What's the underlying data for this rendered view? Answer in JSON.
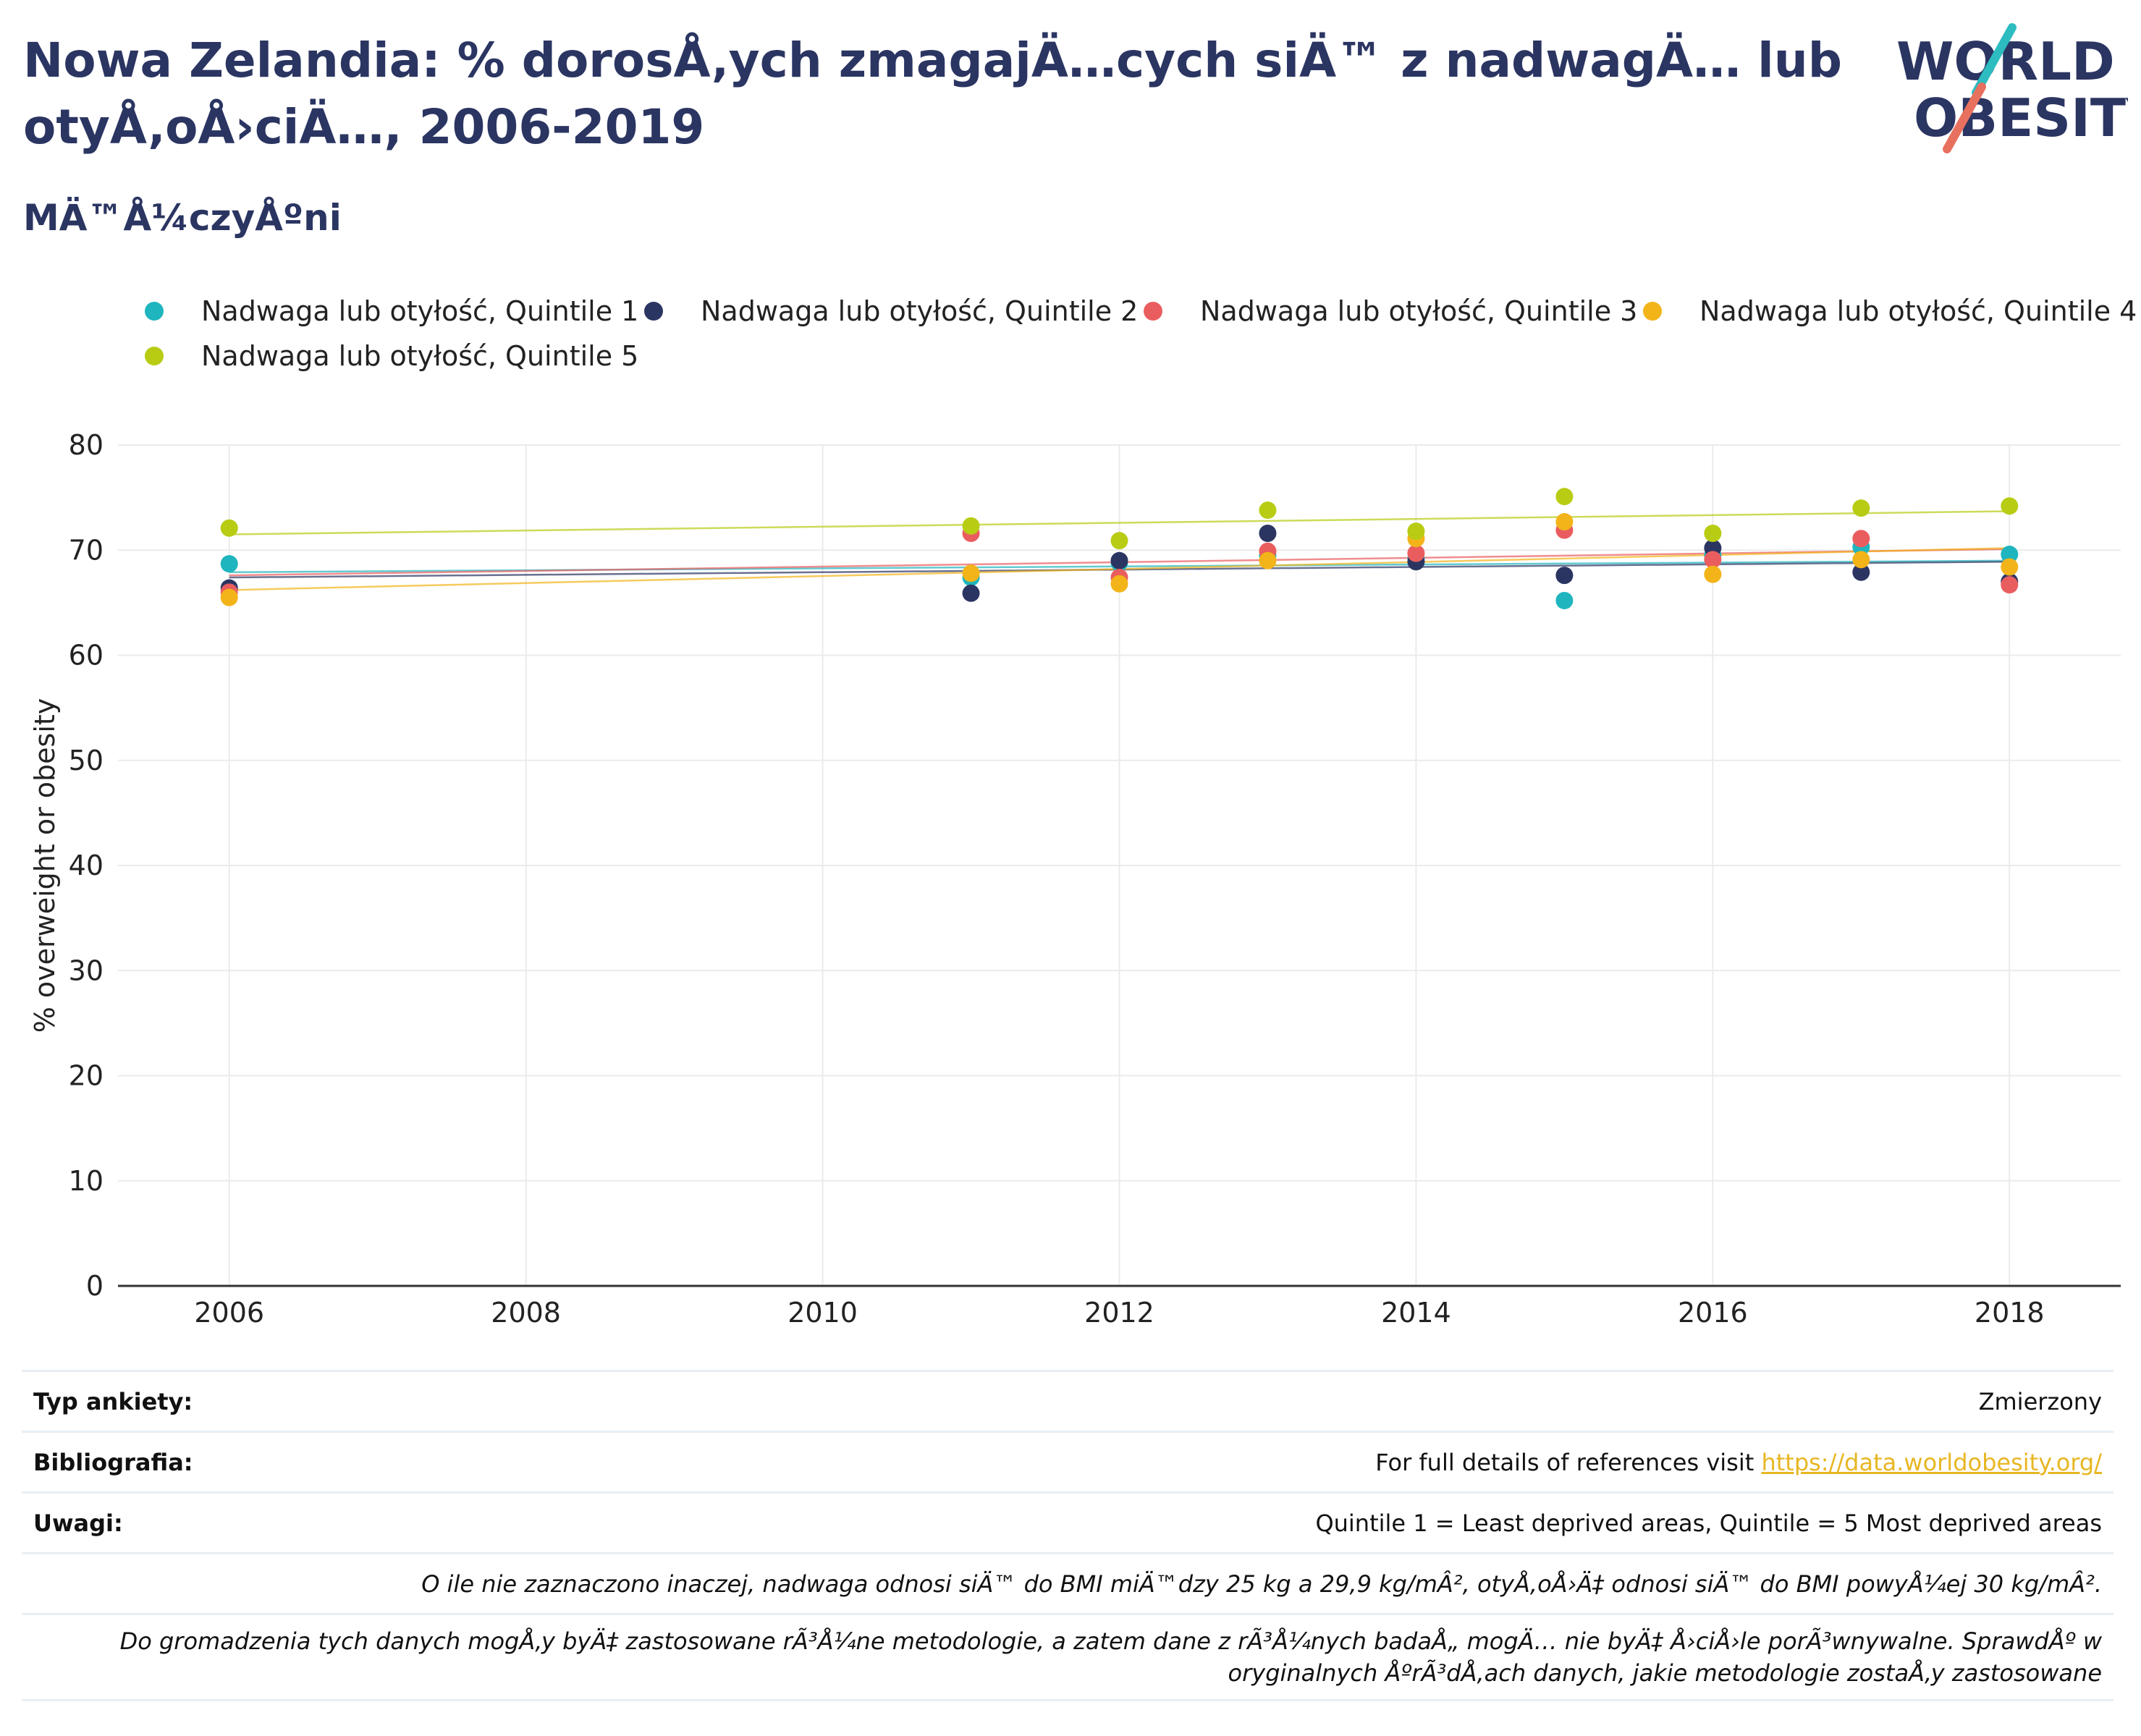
{
  "header": {
    "title": "Nowa Zelandia: % dorosÅ‚ych zmagajÄ…cych siÄ™ z nadwagÄ… lub otyÅ‚oÅ›ciÄ…, 2006-2019",
    "subtitle": "MÄ™Å¼czyÅºni"
  },
  "logo": {
    "line1": "WORLD",
    "line2": "OBESITY",
    "color_text": "#2b3562",
    "color_teal": "#2dbcc0",
    "color_coral": "#e8705f"
  },
  "chart_data": {
    "type": "scatter",
    "title": "Nowa Zelandia: % dorosÅ‚ych zmagajÄ…cych siÄ™ z nadwagÄ… lub otyÅ‚oÅ›ciÄ…, 2006-2019",
    "subtitle": "MÄ™Å¼czyÅºni",
    "xlabel": "",
    "ylabel": "% overweight or obesity",
    "xlim": [
      2005.25,
      2018.75
    ],
    "ylim": [
      0,
      80
    ],
    "xticks": [
      2006,
      2008,
      2010,
      2012,
      2014,
      2016,
      2018
    ],
    "yticks": [
      0,
      10,
      20,
      30,
      40,
      50,
      60,
      70,
      80
    ],
    "grid": true,
    "legend_position": "top",
    "trendlines": true,
    "series": [
      {
        "name": "Nadwaga lub otyłość, Quintile 1",
        "color": "#1fb5be",
        "x": [
          2006,
          2011,
          2012,
          2013,
          2014,
          2015,
          2016,
          2017,
          2018
        ],
        "y": [
          68.7,
          67.4,
          68.8,
          69.5,
          69.2,
          65.2,
          69.5,
          70.3,
          69.6
        ],
        "trend": [
          67.9,
          69.0
        ]
      },
      {
        "name": "Nadwaga lub otyłość, Quintile 2",
        "color": "#2b3562",
        "x": [
          2006,
          2011,
          2012,
          2013,
          2014,
          2015,
          2016,
          2017,
          2018
        ],
        "y": [
          66.4,
          65.9,
          69.0,
          71.6,
          68.9,
          67.6,
          70.2,
          67.9,
          67.0
        ],
        "trend": [
          67.4,
          68.9
        ]
      },
      {
        "name": "Nadwaga lub otyłość, Quintile 3",
        "color": "#ea5d5f",
        "x": [
          2006,
          2011,
          2012,
          2013,
          2014,
          2015,
          2016,
          2017,
          2018
        ],
        "y": [
          66.0,
          71.6,
          67.4,
          69.9,
          69.7,
          71.9,
          69.1,
          71.1,
          66.7
        ],
        "trend": [
          67.6,
          70.1
        ]
      },
      {
        "name": "Nadwaga lub otyłość, Quintile 4",
        "color": "#f2b419",
        "x": [
          2006,
          2011,
          2012,
          2013,
          2014,
          2015,
          2016,
          2017,
          2018
        ],
        "y": [
          65.5,
          67.8,
          66.8,
          69.0,
          71.1,
          72.7,
          67.7,
          69.1,
          68.4
        ],
        "trend": [
          66.2,
          70.2
        ]
      },
      {
        "name": "Nadwaga lub otyłość, Quintile 5",
        "color": "#b8cc14",
        "x": [
          2006,
          2011,
          2012,
          2013,
          2014,
          2015,
          2016,
          2017,
          2018
        ],
        "y": [
          72.1,
          72.3,
          70.9,
          73.8,
          71.8,
          75.1,
          71.6,
          74.0,
          74.2
        ],
        "trend": [
          71.5,
          73.7
        ]
      }
    ]
  },
  "info_table": {
    "survey_label": "Typ ankiety:",
    "survey_value": "Zmierzony",
    "biblio_label": "Bibliografia:",
    "biblio_text": "For full details of references visit ",
    "biblio_link": "https://data.worldobesity.org/",
    "notes_label": "Uwagi:",
    "notes_value": "Quintile 1 = Least deprived areas, Quintile = 5 Most deprived areas",
    "note_bmi": "O ile nie zaznaczono inaczej, nadwaga odnosi siÄ™ do BMI miÄ™dzy 25 kg a 29,9 kg/mÂ², otyÅ‚oÅ›Ä‡ odnosi siÄ™ do BMI powyÅ¼ej 30 kg/mÂ².",
    "note_methods": "Do gromadzenia tych danych mogÅ‚y byÄ‡ zastosowane rÃ³Å¼ne metodologie, a zatem dane z rÃ³Å¼nych badaÅ„ mogÄ… nie byÄ‡ Å›ciÅ›le porÃ³wnywalne. SprawdÅº w oryginalnych ÅºrÃ³dÅ‚ach danych, jakie metodologie zostaÅ‚y zastosowane"
  }
}
